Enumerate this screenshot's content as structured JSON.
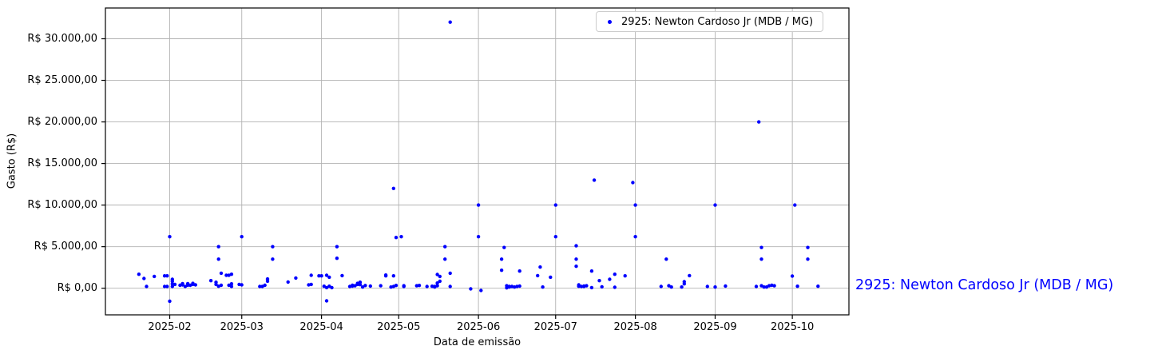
{
  "chart_data": {
    "type": "scatter",
    "xlabel": "Data de emissão",
    "ylabel": "Gasto (R$)",
    "grid": true,
    "legend_position": "upper right",
    "xlim": [
      "2025-01-07",
      "2025-10-23"
    ],
    "ylim": [
      -3200,
      33700
    ],
    "x_ticks": [
      {
        "value": "2025-02-01",
        "label": "2025-02"
      },
      {
        "value": "2025-03-01",
        "label": "2025-03"
      },
      {
        "value": "2025-04-01",
        "label": "2025-04"
      },
      {
        "value": "2025-05-01",
        "label": "2025-05"
      },
      {
        "value": "2025-06-01",
        "label": "2025-06"
      },
      {
        "value": "2025-07-01",
        "label": "2025-07"
      },
      {
        "value": "2025-08-01",
        "label": "2025-08"
      },
      {
        "value": "2025-09-01",
        "label": "2025-09"
      },
      {
        "value": "2025-10-01",
        "label": "2025-10"
      }
    ],
    "y_ticks": [
      {
        "value": 0,
        "label": "R$ 0,00"
      },
      {
        "value": 5000,
        "label": "R$ 5.000,00"
      },
      {
        "value": 10000,
        "label": "R$ 10.000,00"
      },
      {
        "value": 15000,
        "label": "R$ 15.000,00"
      },
      {
        "value": 20000,
        "label": "R$ 20.000,00"
      },
      {
        "value": 25000,
        "label": "R$ 25.000,00"
      },
      {
        "value": 30000,
        "label": "R$ 30.000,00"
      }
    ],
    "series": [
      {
        "name": "2925: Newton Cardoso Jr (MDB / MG)",
        "color": "#0000ff",
        "marker": "dot",
        "points": [
          [
            "2025-01-20",
            1680
          ],
          [
            "2025-01-22",
            1170
          ],
          [
            "2025-01-23",
            210
          ],
          [
            "2025-01-26",
            1420
          ],
          [
            "2025-01-30",
            1490
          ],
          [
            "2025-01-30",
            210
          ],
          [
            "2025-01-31",
            1490
          ],
          [
            "2025-01-31",
            210
          ],
          [
            "2025-02-01",
            6200
          ],
          [
            "2025-02-01",
            -1560
          ],
          [
            "2025-02-02",
            1080
          ],
          [
            "2025-02-02",
            850
          ],
          [
            "2025-02-02",
            530
          ],
          [
            "2025-02-02",
            210
          ],
          [
            "2025-02-03",
            460
          ],
          [
            "2025-02-05",
            360
          ],
          [
            "2025-02-06",
            400
          ],
          [
            "2025-02-06",
            560
          ],
          [
            "2025-02-07",
            210
          ],
          [
            "2025-02-08",
            360
          ],
          [
            "2025-02-08",
            560
          ],
          [
            "2025-02-09",
            360
          ],
          [
            "2025-02-10",
            460
          ],
          [
            "2025-02-10",
            590
          ],
          [
            "2025-02-11",
            400
          ],
          [
            "2025-02-17",
            910
          ],
          [
            "2025-02-19",
            720
          ],
          [
            "2025-02-19",
            460
          ],
          [
            "2025-02-20",
            5000
          ],
          [
            "2025-02-20",
            3500
          ],
          [
            "2025-02-20",
            240
          ],
          [
            "2025-02-21",
            1810
          ],
          [
            "2025-02-21",
            360
          ],
          [
            "2025-02-23",
            1560
          ],
          [
            "2025-02-24",
            1560
          ],
          [
            "2025-02-24",
            360
          ],
          [
            "2025-02-25",
            1680
          ],
          [
            "2025-02-25",
            530
          ],
          [
            "2025-02-25",
            210
          ],
          [
            "2025-02-28",
            460
          ],
          [
            "2025-03-01",
            6200
          ],
          [
            "2025-03-01",
            400
          ],
          [
            "2025-03-08",
            210
          ],
          [
            "2025-03-09",
            210
          ],
          [
            "2025-03-10",
            360
          ],
          [
            "2025-03-11",
            1110
          ],
          [
            "2025-03-11",
            850
          ],
          [
            "2025-03-13",
            5000
          ],
          [
            "2025-03-13",
            3500
          ],
          [
            "2025-03-19",
            750
          ],
          [
            "2025-03-22",
            1230
          ],
          [
            "2025-03-27",
            400
          ],
          [
            "2025-03-28",
            1560
          ],
          [
            "2025-03-28",
            460
          ],
          [
            "2025-03-31",
            1490
          ],
          [
            "2025-04-01",
            1490
          ],
          [
            "2025-04-02",
            240
          ],
          [
            "2025-04-03",
            1560
          ],
          [
            "2025-04-03",
            80
          ],
          [
            "2025-04-03",
            -1520
          ],
          [
            "2025-04-04",
            1330
          ],
          [
            "2025-04-04",
            240
          ],
          [
            "2025-04-05",
            80
          ],
          [
            "2025-04-07",
            5000
          ],
          [
            "2025-04-07",
            3600
          ],
          [
            "2025-04-09",
            1520
          ],
          [
            "2025-04-12",
            210
          ],
          [
            "2025-04-13",
            360
          ],
          [
            "2025-04-13",
            260
          ],
          [
            "2025-04-14",
            300
          ],
          [
            "2025-04-15",
            590
          ],
          [
            "2025-04-15",
            460
          ],
          [
            "2025-04-16",
            720
          ],
          [
            "2025-04-16",
            430
          ],
          [
            "2025-04-17",
            140
          ],
          [
            "2025-04-18",
            330
          ],
          [
            "2025-04-20",
            260
          ],
          [
            "2025-04-24",
            300
          ],
          [
            "2025-04-26",
            1590
          ],
          [
            "2025-04-26",
            1490
          ],
          [
            "2025-04-28",
            140
          ],
          [
            "2025-04-29",
            12000
          ],
          [
            "2025-04-29",
            1490
          ],
          [
            "2025-04-29",
            210
          ],
          [
            "2025-04-30",
            6100
          ],
          [
            "2025-04-30",
            340
          ],
          [
            "2025-05-02",
            6200
          ],
          [
            "2025-05-03",
            300
          ],
          [
            "2025-05-03",
            210
          ],
          [
            "2025-05-08",
            300
          ],
          [
            "2025-05-09",
            340
          ],
          [
            "2025-05-12",
            210
          ],
          [
            "2025-05-14",
            240
          ],
          [
            "2025-05-15",
            210
          ],
          [
            "2025-05-15",
            140
          ],
          [
            "2025-05-16",
            1650
          ],
          [
            "2025-05-16",
            620
          ],
          [
            "2025-05-16",
            300
          ],
          [
            "2025-05-17",
            1420
          ],
          [
            "2025-05-17",
            850
          ],
          [
            "2025-05-19",
            5000
          ],
          [
            "2025-05-19",
            3500
          ],
          [
            "2025-05-21",
            32000
          ],
          [
            "2025-05-21",
            1810
          ],
          [
            "2025-05-21",
            210
          ],
          [
            "2025-05-29",
            -80
          ],
          [
            "2025-06-01",
            10000
          ],
          [
            "2025-06-01",
            6200
          ],
          [
            "2025-06-02",
            -270
          ],
          [
            "2025-06-10",
            3500
          ],
          [
            "2025-06-10",
            2160
          ],
          [
            "2025-06-11",
            4900
          ],
          [
            "2025-06-12",
            300
          ],
          [
            "2025-06-12",
            50
          ],
          [
            "2025-06-13",
            210
          ],
          [
            "2025-06-13",
            140
          ],
          [
            "2025-06-14",
            210
          ],
          [
            "2025-06-15",
            140
          ],
          [
            "2025-06-16",
            210
          ],
          [
            "2025-06-17",
            2070
          ],
          [
            "2025-06-17",
            260
          ],
          [
            "2025-06-24",
            1520
          ],
          [
            "2025-06-25",
            2550
          ],
          [
            "2025-06-26",
            140
          ],
          [
            "2025-06-29",
            1330
          ],
          [
            "2025-07-01",
            10000
          ],
          [
            "2025-07-01",
            6200
          ],
          [
            "2025-07-09",
            5100
          ],
          [
            "2025-07-09",
            3500
          ],
          [
            "2025-07-09",
            2640
          ],
          [
            "2025-07-10",
            400
          ],
          [
            "2025-07-10",
            240
          ],
          [
            "2025-07-11",
            210
          ],
          [
            "2025-07-12",
            260
          ],
          [
            "2025-07-12",
            210
          ],
          [
            "2025-07-13",
            300
          ],
          [
            "2025-07-15",
            2070
          ],
          [
            "2025-07-15",
            80
          ],
          [
            "2025-07-16",
            13000
          ],
          [
            "2025-07-18",
            910
          ],
          [
            "2025-07-19",
            170
          ],
          [
            "2025-07-22",
            1080
          ],
          [
            "2025-07-24",
            1680
          ],
          [
            "2025-07-24",
            120
          ],
          [
            "2025-07-28",
            1490
          ],
          [
            "2025-07-31",
            12700
          ],
          [
            "2025-08-01",
            10000
          ],
          [
            "2025-08-01",
            6200
          ],
          [
            "2025-08-11",
            210
          ],
          [
            "2025-08-13",
            3500
          ],
          [
            "2025-08-14",
            300
          ],
          [
            "2025-08-15",
            140
          ],
          [
            "2025-08-19",
            140
          ],
          [
            "2025-08-20",
            790
          ],
          [
            "2025-08-20",
            530
          ],
          [
            "2025-08-22",
            1520
          ],
          [
            "2025-08-29",
            210
          ],
          [
            "2025-09-01",
            10000
          ],
          [
            "2025-09-01",
            140
          ],
          [
            "2025-09-05",
            260
          ],
          [
            "2025-09-17",
            210
          ],
          [
            "2025-09-18",
            20000
          ],
          [
            "2025-09-19",
            4900
          ],
          [
            "2025-09-19",
            3500
          ],
          [
            "2025-09-19",
            300
          ],
          [
            "2025-09-20",
            140
          ],
          [
            "2025-09-21",
            140
          ],
          [
            "2025-09-22",
            300
          ],
          [
            "2025-09-23",
            360
          ],
          [
            "2025-09-24",
            300
          ],
          [
            "2025-10-01",
            1460
          ],
          [
            "2025-10-02",
            10000
          ],
          [
            "2025-10-03",
            240
          ],
          [
            "2025-10-07",
            4900
          ],
          [
            "2025-10-07",
            3500
          ],
          [
            "2025-10-11",
            240
          ]
        ]
      }
    ]
  },
  "legend": {
    "label": "2925: Newton Cardoso Jr (MDB / MG)",
    "marker_color": "#0000ff"
  },
  "annotation": {
    "label": "2925: Newton Cardoso Jr (MDB / MG)",
    "color": "#0000ff"
  },
  "axes": {
    "xlabel": "Data de emissão",
    "ylabel": "Gasto (R$)"
  },
  "colors": {
    "point": "#0000ff",
    "grid": "#b2b2b2",
    "spine": "#000000",
    "background": "#ffffff"
  }
}
